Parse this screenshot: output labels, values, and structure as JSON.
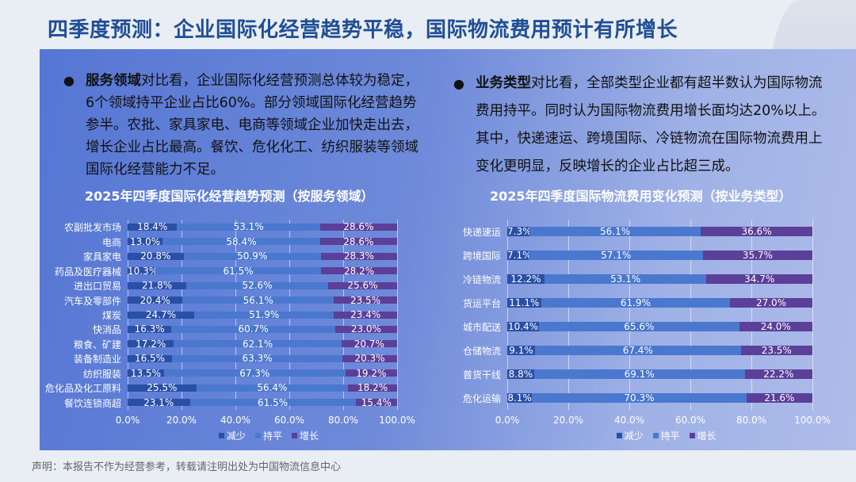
{
  "title": "四季度预测：企业国际化经营趋势平稳，国际物流费用预计有所增长",
  "left_bullet": {
    "bold": "服务领域",
    "text": "对比看，企业国际化经营预测总体较为稳定，6个领域持平企业占比60%。部分领域国际化经营趋势参半。农批、家具家电、电商等领域企业加快走出去，增长企业占比最高。餐饮、危化化工、纺织服装等领域国际化经营能力不足。"
  },
  "right_bullet": {
    "bold": "业务类型",
    "text": "对比看，全部类型企业都有超半数认为国际物流费用持平。同时认为国际物流费用增长面均达20%以上。其中，快递速运、跨境国际、冷链物流在国际物流费用上变化更明显，反映增长的企业占比超三成。"
  },
  "footer": "声明：本报告不作为经营参考，转载请注明出处为中国物流信息中心",
  "colors": {
    "decrease": "#2a4fa6",
    "flat": "#4a78cf",
    "increase": "#5b3f98",
    "title": "#1f4e96"
  },
  "chart_data": [
    {
      "type": "bar",
      "stacked": true,
      "orientation": "horizontal",
      "title": "2025年四季度国际化经营趋势预测（按服务领域）",
      "categories": [
        "农副批发市场",
        "电商",
        "家具家电",
        "药品及医疗器械",
        "进出口贸易",
        "汽车及零部件",
        "煤炭",
        "快消品",
        "粮食、矿建",
        "装备制造业",
        "纺织服装",
        "危化品及化工原料",
        "餐饮连锁商超"
      ],
      "series": [
        {
          "name": "减少",
          "values": [
            18.4,
            13.0,
            20.8,
            10.3,
            21.8,
            20.4,
            24.7,
            16.3,
            17.2,
            16.5,
            13.5,
            25.5,
            23.1
          ]
        },
        {
          "name": "持平",
          "values": [
            53.1,
            58.4,
            50.9,
            61.5,
            52.6,
            56.1,
            51.9,
            60.7,
            62.1,
            63.3,
            67.3,
            56.4,
            61.5
          ]
        },
        {
          "name": "增长",
          "values": [
            28.6,
            28.6,
            28.3,
            28.2,
            25.6,
            23.5,
            23.4,
            23.0,
            20.7,
            20.3,
            19.2,
            18.2,
            15.4
          ]
        }
      ],
      "xticks": [
        "0.0%",
        "20.0%",
        "40.0%",
        "60.0%",
        "80.0%",
        "100.0%"
      ],
      "xlim": [
        0,
        100
      ],
      "legend": [
        "减少",
        "持平",
        "增长"
      ],
      "legend_position": "bottom"
    },
    {
      "type": "bar",
      "stacked": true,
      "orientation": "horizontal",
      "title": "2025年四季度国际物流费用变化预测（按业务类型）",
      "categories": [
        "快递速运",
        "跨境国际",
        "冷链物流",
        "货运平台",
        "城市配送",
        "仓储物流",
        "普货干线",
        "危化运输"
      ],
      "series": [
        {
          "name": "减少",
          "values": [
            7.3,
            7.1,
            12.2,
            11.1,
            10.4,
            9.1,
            8.8,
            8.1
          ]
        },
        {
          "name": "持平",
          "values": [
            56.1,
            57.1,
            53.1,
            61.9,
            65.6,
            67.4,
            69.1,
            70.3
          ]
        },
        {
          "name": "增长",
          "values": [
            36.6,
            35.7,
            34.7,
            27.0,
            24.0,
            23.5,
            22.2,
            21.6
          ]
        }
      ],
      "xticks": [
        "0.0%",
        "20.0%",
        "40.0%",
        "60.0%",
        "80.0%",
        "100.0%"
      ],
      "xlim": [
        0,
        100
      ],
      "legend": [
        "减少",
        "持平",
        "增长"
      ],
      "legend_position": "bottom"
    }
  ]
}
